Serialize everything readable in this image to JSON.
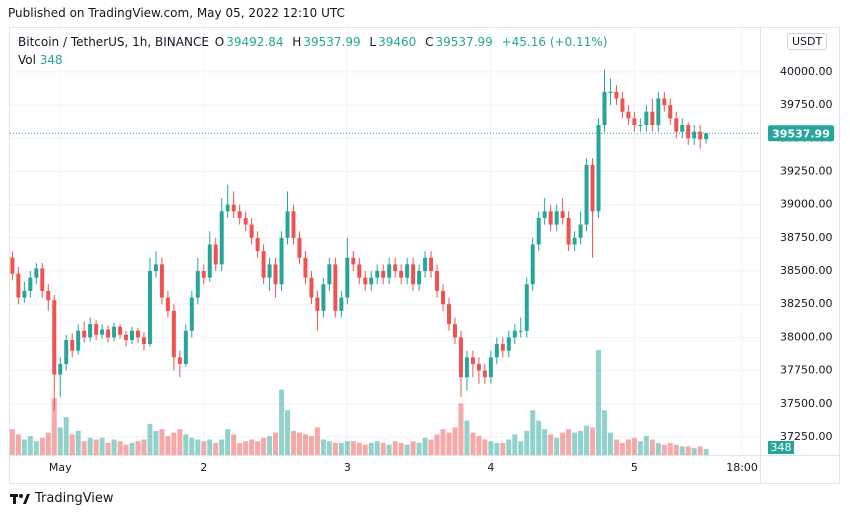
{
  "published": "Published on TradingView.com, May 05, 2022 12:10 UTC",
  "brand": "TradingView",
  "chart_data": {
    "type": "candlestick",
    "title": "Bitcoin / TetherUS, 1h, BINANCE",
    "ohlc_labels": [
      "O",
      "H",
      "L",
      "C"
    ],
    "change_label": "+45.16 (+0.11%)",
    "volume_label": "Vol",
    "currency": "USDT",
    "up_color": "#26a69a",
    "down_color": "#ef5350",
    "grid": true,
    "xlim": [
      -0.4,
      125
    ],
    "xticks": [
      {
        "value": 8,
        "label": "May"
      },
      {
        "value": 32,
        "label": "2"
      },
      {
        "value": 56,
        "label": "3"
      },
      {
        "value": 80,
        "label": "4"
      },
      {
        "value": 104,
        "label": "5"
      },
      {
        "value": 122,
        "label": "18:00"
      }
    ],
    "ylim": [
      37114,
      40331
    ],
    "yticks": [
      {
        "value": 37250,
        "label": "37250.00"
      },
      {
        "value": 37500,
        "label": "37500.00"
      },
      {
        "value": 37750,
        "label": "37750.00"
      },
      {
        "value": 38000,
        "label": "38000.00"
      },
      {
        "value": 38250,
        "label": "38250.00"
      },
      {
        "value": 38500,
        "label": "38500.00"
      },
      {
        "value": 38750,
        "label": "38750.00"
      },
      {
        "value": 39000,
        "label": "39000.00"
      },
      {
        "value": 39250,
        "label": "39250.00"
      },
      {
        "value": 39500,
        "label": "39500.00"
      },
      {
        "value": 39750,
        "label": "39750.00"
      },
      {
        "value": 40000,
        "label": "40000.00"
      }
    ],
    "open": [
      38600,
      38480,
      38300,
      38350,
      38450,
      38520,
      38350,
      38280,
      37720,
      37800,
      37980,
      37900,
      38050,
      38000,
      38100,
      38020,
      38060,
      38000,
      38080,
      38020,
      37980,
      38050,
      38000,
      37950,
      38500,
      38550,
      38300,
      38200,
      37850,
      37800,
      38050,
      38300,
      38500,
      38450,
      38700,
      38550,
      38950,
      39000,
      38950,
      38900,
      38850,
      38750,
      38650,
      38450,
      38550,
      38400,
      38750,
      38950,
      38750,
      38600,
      38450,
      38300,
      38200,
      38400,
      38550,
      38200,
      38300,
      38600,
      38550,
      38450,
      38400,
      38450,
      38500,
      38450,
      38550,
      38500,
      38450,
      38550,
      38400,
      38500,
      38600,
      38500,
      38350,
      38250,
      38100,
      38000,
      37700,
      37850,
      37800,
      37750,
      37700,
      37850,
      37950,
      37900,
      38000,
      38050,
      38050,
      38400,
      38700,
      38900,
      38950,
      38850,
      38950,
      38900,
      38700,
      38750,
      38850,
      39300,
      38950,
      39600,
      39850,
      39850,
      39800,
      39700,
      39650,
      39600,
      39600,
      39700,
      39600,
      39800,
      39750,
      39650,
      39550,
      39600,
      39500,
      39550,
      39492.84
    ],
    "high": [
      38650,
      38530,
      38420,
      38500,
      38560,
      38560,
      38400,
      38320,
      37850,
      38020,
      38030,
      38100,
      38120,
      38150,
      38130,
      38100,
      38090,
      38110,
      38100,
      38050,
      38080,
      38070,
      38040,
      38600,
      38650,
      38600,
      38350,
      38250,
      37900,
      38100,
      38350,
      38600,
      38550,
      38800,
      38750,
      39050,
      39150,
      39100,
      39000,
      38950,
      38900,
      38800,
      38700,
      38600,
      38600,
      38800,
      39100,
      39000,
      38800,
      38650,
      38500,
      38350,
      38450,
      38600,
      38600,
      38350,
      38750,
      38650,
      38600,
      38500,
      38500,
      38550,
      38550,
      38600,
      38600,
      38550,
      38600,
      38600,
      38550,
      38650,
      38650,
      38550,
      38400,
      38300,
      38150,
      38050,
      37900,
      37900,
      37850,
      37800,
      37900,
      38000,
      38000,
      38050,
      38100,
      38150,
      38450,
      38750,
      38950,
      39050,
      39000,
      39000,
      39050,
      38950,
      38800,
      38950,
      39350,
      39350,
      39650,
      40020,
      39950,
      39900,
      39850,
      39750,
      39700,
      39650,
      39750,
      39800,
      39850,
      39850,
      39800,
      39700,
      39650,
      39620,
      39600,
      39600,
      39537.99
    ],
    "low": [
      38430,
      38250,
      38260,
      38300,
      38400,
      38300,
      38200,
      37450,
      37550,
      37750,
      37850,
      37870,
      37960,
      37970,
      37980,
      37990,
      37960,
      37970,
      37990,
      37930,
      37950,
      37960,
      37900,
      37930,
      38450,
      38250,
      38150,
      37750,
      37700,
      37780,
      38000,
      38250,
      38400,
      38420,
      38500,
      38500,
      38900,
      38900,
      38850,
      38800,
      38700,
      38600,
      38400,
      38350,
      38300,
      38350,
      38700,
      38700,
      38550,
      38400,
      38250,
      38050,
      38150,
      38350,
      38150,
      38150,
      38250,
      38500,
      38400,
      38350,
      38350,
      38400,
      38400,
      38400,
      38450,
      38400,
      38400,
      38350,
      38350,
      38450,
      38450,
      38300,
      38200,
      38050,
      37950,
      37550,
      37600,
      37700,
      37650,
      37650,
      37650,
      37800,
      37850,
      37850,
      37950,
      38000,
      38000,
      38350,
      38650,
      38850,
      38800,
      38800,
      38850,
      38650,
      38650,
      38700,
      38800,
      38600,
      38900,
      39550,
      39750,
      39750,
      39650,
      39600,
      39550,
      39550,
      39550,
      39550,
      39550,
      39700,
      39600,
      39500,
      39500,
      39450,
      39450,
      39420,
      39460
    ],
    "close": [
      38480,
      38300,
      38350,
      38450,
      38520,
      38350,
      38280,
      37720,
      37800,
      37980,
      37900,
      38050,
      38000,
      38100,
      38020,
      38060,
      38000,
      38080,
      38020,
      37980,
      38050,
      38000,
      37950,
      38500,
      38550,
      38300,
      38200,
      37850,
      37800,
      38050,
      38300,
      38500,
      38450,
      38700,
      38550,
      38950,
      39000,
      38950,
      38900,
      38850,
      38750,
      38650,
      38450,
      38550,
      38400,
      38750,
      38950,
      38750,
      38600,
      38450,
      38300,
      38200,
      38400,
      38550,
      38200,
      38300,
      38600,
      38550,
      38450,
      38400,
      38450,
      38500,
      38450,
      38550,
      38500,
      38450,
      38550,
      38400,
      38500,
      38600,
      38500,
      38350,
      38250,
      38100,
      38000,
      37700,
      37850,
      37800,
      37750,
      37700,
      37850,
      37950,
      37900,
      38000,
      38050,
      38050,
      38400,
      38700,
      38900,
      38950,
      38850,
      38950,
      38900,
      38700,
      38750,
      38850,
      39300,
      38950,
      39600,
      39850,
      39850,
      39800,
      39700,
      39650,
      39600,
      39600,
      39700,
      39600,
      39800,
      39750,
      39650,
      39550,
      39600,
      39500,
      39550,
      39492.84,
      39537.99
    ],
    "volume": [
      1500,
      1200,
      900,
      1100,
      800,
      1000,
      1300,
      3300,
      1600,
      2200,
      1200,
      1400,
      800,
      1000,
      900,
      1000,
      700,
      900,
      800,
      600,
      700,
      800,
      900,
      1800,
      1400,
      1500,
      1100,
      1300,
      1500,
      1200,
      1000,
      900,
      800,
      900,
      700,
      900,
      1500,
      1200,
      700,
      800,
      900,
      800,
      1000,
      1100,
      1300,
      3800,
      2600,
      1400,
      1300,
      1200,
      1100,
      1600,
      900,
      800,
      700,
      700,
      800,
      800,
      700,
      600,
      700,
      800,
      700,
      600,
      800,
      700,
      600,
      800,
      700,
      1000,
      900,
      1200,
      1500,
      1300,
      1600,
      3000,
      2000,
      1300,
      1100,
      900,
      800,
      700,
      700,
      900,
      1200,
      800,
      1400,
      2600,
      2000,
      1500,
      1200,
      1000,
      1300,
      1500,
      1300,
      1400,
      1700,
      1600,
      6100,
      2600,
      1300,
      900,
      700,
      900,
      1000,
      800,
      1100,
      900,
      700,
      600,
      700,
      600,
      500,
      500,
      400,
      500,
      348
    ]
  }
}
